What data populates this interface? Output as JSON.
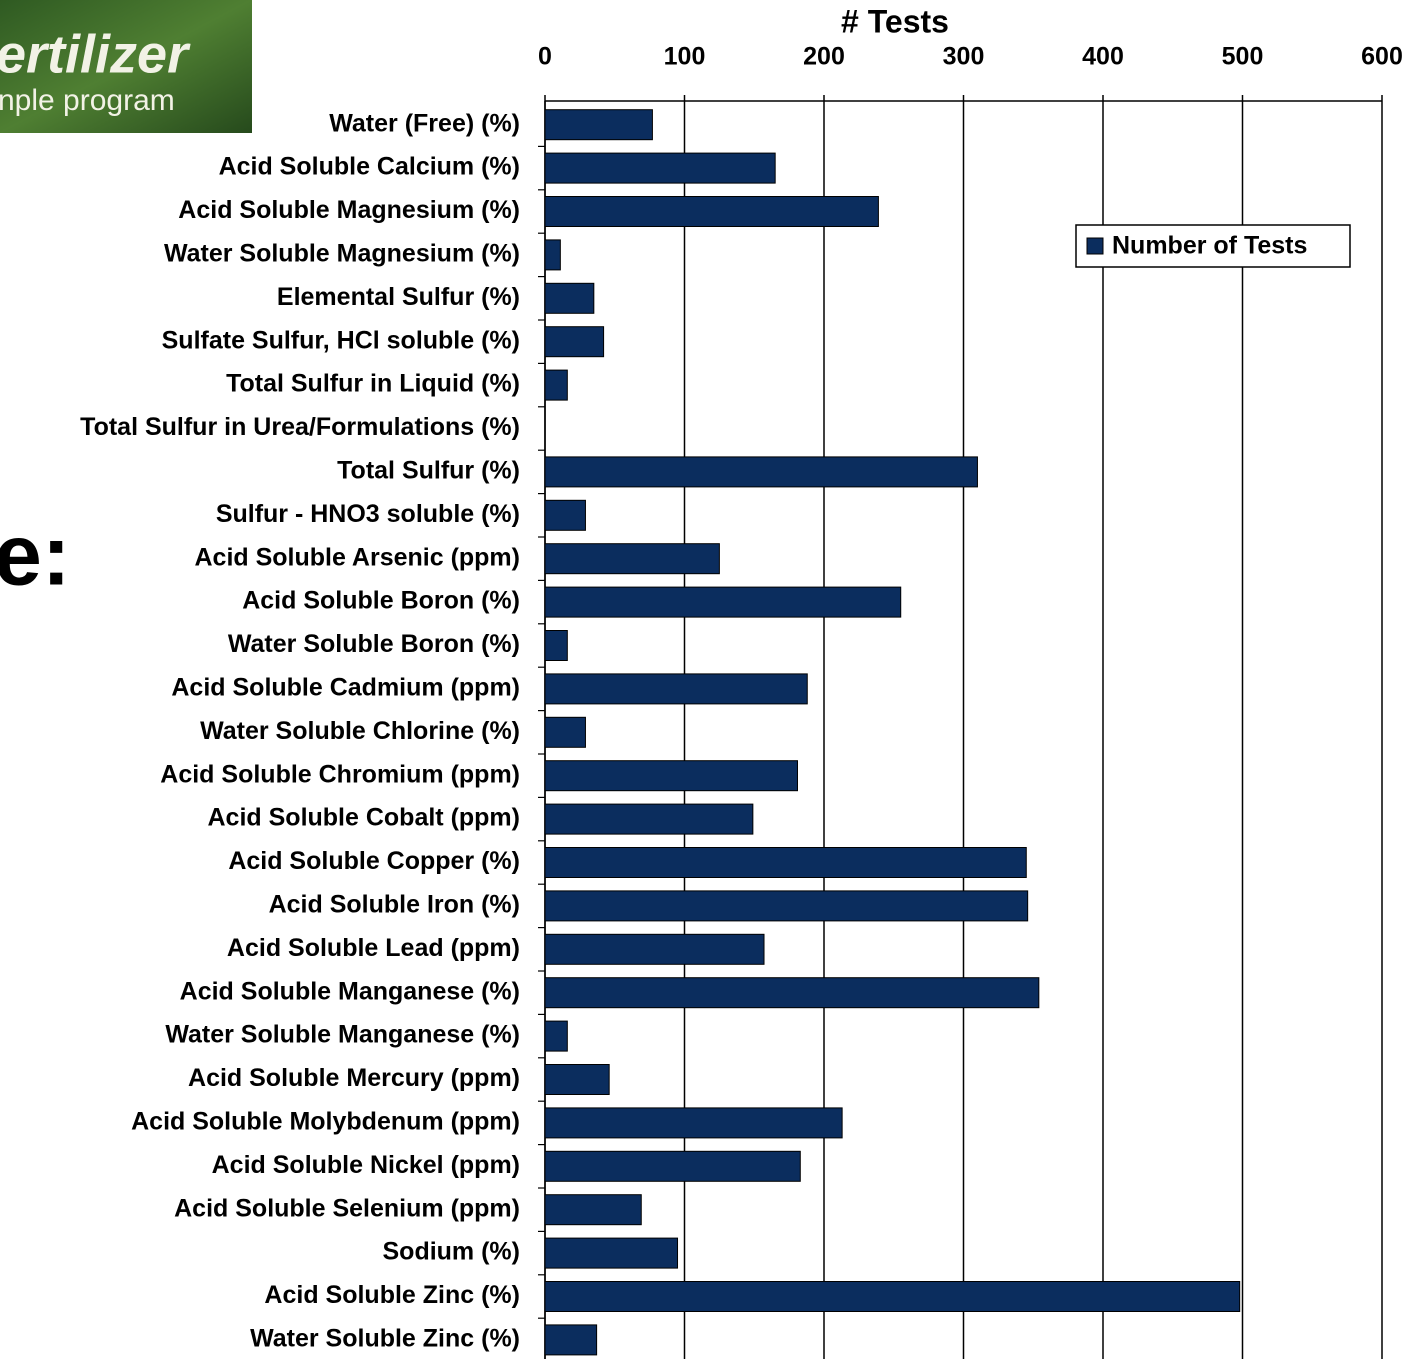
{
  "logo": {
    "line1": "ertilizer",
    "line2": "nple program"
  },
  "slide_fragment": "e:",
  "chart_data": {
    "type": "barh",
    "title": "# Tests",
    "categories": [
      "Water (Free) (%)",
      "Acid Soluble Calcium (%)",
      "Acid Soluble Magnesium (%)",
      "Water Soluble Magnesium (%)",
      "Elemental Sulfur (%)",
      "Sulfate Sulfur, HCl soluble (%)",
      "Total Sulfur in Liquid (%)",
      "Total Sulfur in Urea/Formulations (%)",
      "Total Sulfur (%)",
      "Sulfur - HNO3 soluble (%)",
      "Acid Soluble Arsenic (ppm)",
      "Acid Soluble Boron (%)",
      "Water Soluble Boron (%)",
      "Acid Soluble Cadmium (ppm)",
      "Water Soluble Chlorine (%)",
      "Acid Soluble Chromium (ppm)",
      "Acid Soluble Cobalt (ppm)",
      "Acid Soluble Copper (%)",
      "Acid Soluble Iron (%)",
      "Acid Soluble Lead (ppm)",
      "Acid Soluble Manganese (%)",
      "Water Soluble Manganese (%)",
      "Acid Soluble Mercury (ppm)",
      "Acid Soluble Molybdenum (ppm)",
      "Acid Soluble Nickel (ppm)",
      "Acid Soluble Selenium (ppm)",
      "Sodium (%)",
      "Acid Soluble Zinc (%)",
      "Water Soluble Zinc (%)"
    ],
    "series": [
      {
        "name": "Number of Tests",
        "color": "#0b2d5e",
        "values": [
          77,
          165,
          239,
          11,
          35,
          42,
          16,
          0,
          310,
          29,
          125,
          255,
          16,
          188,
          29,
          181,
          149,
          345,
          346,
          157,
          354,
          16,
          46,
          213,
          183,
          69,
          95,
          498,
          37
        ]
      }
    ],
    "xlim": [
      0,
      600
    ],
    "xticks": [
      0,
      100,
      200,
      300,
      400,
      500,
      600
    ],
    "grid": true,
    "legend": "upper right"
  }
}
